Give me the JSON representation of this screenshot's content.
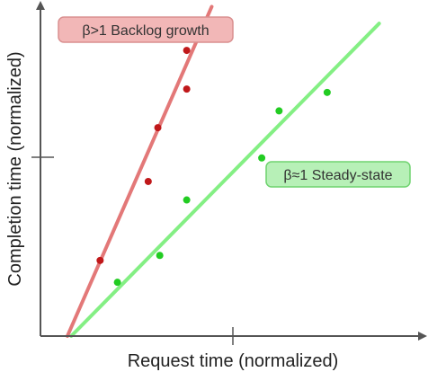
{
  "chart_data": {
    "type": "scatter",
    "title": "",
    "xlabel": "Request time (normalized)",
    "ylabel": "Completion time (normalized)",
    "xlim": [
      0,
      2
    ],
    "ylim": [
      0,
      2
    ],
    "grid": false,
    "series": [
      {
        "name": "β>1 Backlog growth",
        "color": "#c0181a",
        "line_color": "#e06a6a",
        "label_fill": "#f2b7b7",
        "label_stroke": "#d98f8f",
        "label_text_color": "#333333",
        "fit": {
          "x": [
            0.14,
            0.89
          ],
          "y": [
            0.0,
            1.96
          ]
        },
        "points": [
          {
            "x": 0.31,
            "y": 0.45
          },
          {
            "x": 0.56,
            "y": 0.92
          },
          {
            "x": 0.61,
            "y": 1.24
          },
          {
            "x": 0.76,
            "y": 1.47
          },
          {
            "x": 0.76,
            "y": 1.7
          }
        ]
      },
      {
        "name": "β≈1 Steady-state",
        "color": "#22cc22",
        "line_color": "#77ee77",
        "label_fill": "#b7f0b7",
        "label_stroke": "#6fd36f",
        "label_text_color": "#333333",
        "fit": {
          "x": [
            0.16,
            1.76
          ],
          "y": [
            0.0,
            1.86
          ]
        },
        "points": [
          {
            "x": 0.4,
            "y": 0.32
          },
          {
            "x": 0.62,
            "y": 0.48
          },
          {
            "x": 0.76,
            "y": 0.81
          },
          {
            "x": 1.15,
            "y": 1.06
          },
          {
            "x": 1.24,
            "y": 1.34
          },
          {
            "x": 1.49,
            "y": 1.45
          }
        ]
      }
    ]
  }
}
